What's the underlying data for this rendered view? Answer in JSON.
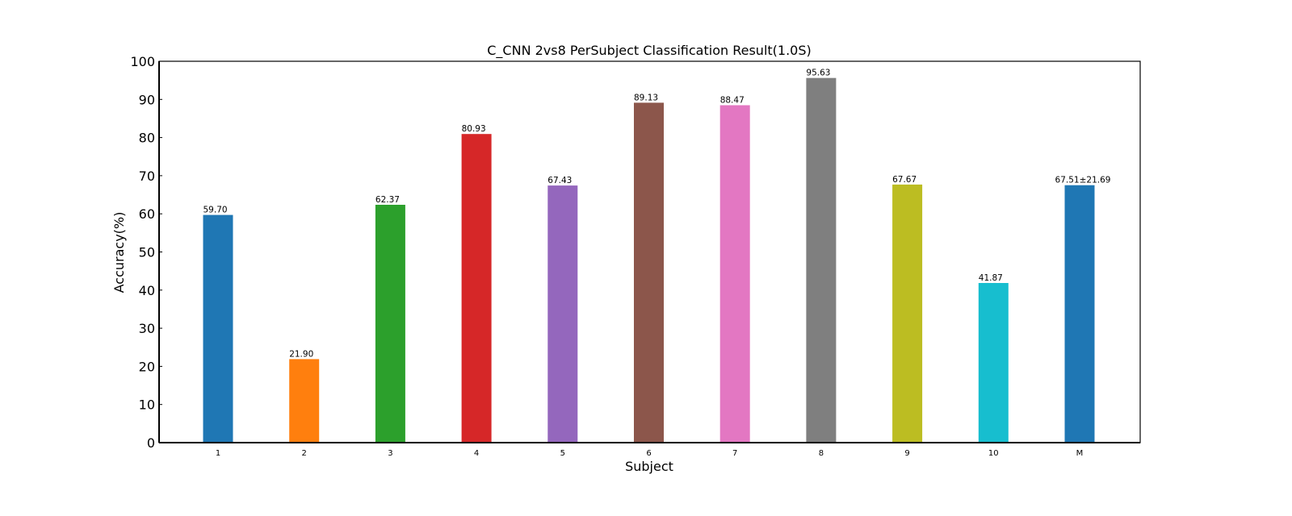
{
  "chart_data": {
    "type": "bar",
    "title": "C_CNN 2vs8 PerSubject Classification Result(1.0S)",
    "xlabel": "Subject",
    "ylabel": "Accuracy(%)",
    "ylim": [
      0,
      100
    ],
    "yticks": [
      0,
      10,
      20,
      30,
      40,
      50,
      60,
      70,
      80,
      90,
      100
    ],
    "grid": false,
    "categories": [
      "1",
      "2",
      "3",
      "4",
      "5",
      "6",
      "7",
      "8",
      "9",
      "10",
      "M"
    ],
    "values": [
      59.7,
      21.9,
      62.37,
      80.93,
      67.43,
      89.13,
      88.47,
      95.63,
      67.67,
      41.87,
      67.51
    ],
    "labels": [
      "59.70",
      "21.90",
      "62.37",
      "80.93",
      "67.43",
      "89.13",
      "88.47",
      "95.63",
      "67.67",
      "41.87",
      "67.51±21.69"
    ],
    "colors": [
      "#1f77b4",
      "#ff7f0e",
      "#2ca02c",
      "#d62728",
      "#9467bd",
      "#8c564b",
      "#e377c2",
      "#7f7f7f",
      "#bcbd22",
      "#17becf",
      "#1f77b4"
    ],
    "label_colors": [
      "#000000",
      "#000000",
      "#000000",
      "#000000",
      "#000000",
      "#000000",
      "#000000",
      "#000000",
      "#000000",
      "#000000",
      "#ff0000"
    ]
  }
}
